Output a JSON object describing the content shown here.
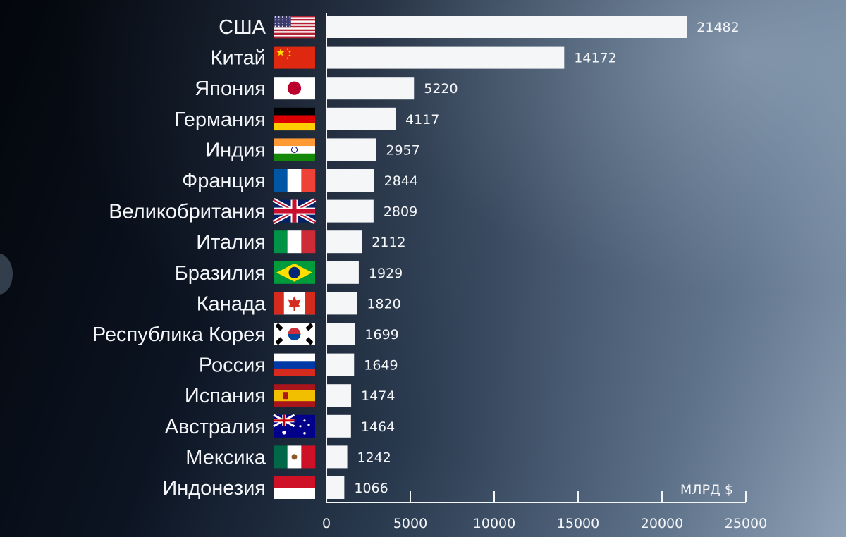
{
  "chart_data": {
    "type": "bar",
    "orientation": "horizontal",
    "title": "",
    "xlabel": "",
    "ylabel": "",
    "unit_label": "МЛРД $",
    "xlim": [
      0,
      25000
    ],
    "ticks": [
      0,
      5000,
      10000,
      15000,
      20000,
      25000
    ],
    "bar_color": "#f5f6f8",
    "grid": false,
    "legend": "none",
    "categories": [
      "США",
      "Китай",
      "Япония",
      "Германия",
      "Индия",
      "Франция",
      "Великобритания",
      "Италия",
      "Бразилия",
      "Канада",
      "Республика Корея",
      "Россия",
      "Испания",
      "Австралия",
      "Мексика",
      "Индонезия"
    ],
    "values": [
      21482,
      14172,
      5220,
      4117,
      2957,
      2844,
      2809,
      2112,
      1929,
      1820,
      1699,
      1649,
      1474,
      1464,
      1242,
      1066
    ],
    "flags": [
      "us-flag-icon",
      "china-flag-icon",
      "japan-flag-icon",
      "germany-flag-icon",
      "india-flag-icon",
      "france-flag-icon",
      "uk-flag-icon",
      "italy-flag-icon",
      "brazil-flag-icon",
      "canada-flag-icon",
      "korea-flag-icon",
      "russia-flag-icon",
      "spain-flag-icon",
      "australia-flag-icon",
      "mexico-flag-icon",
      "indonesia-flag-icon"
    ]
  }
}
